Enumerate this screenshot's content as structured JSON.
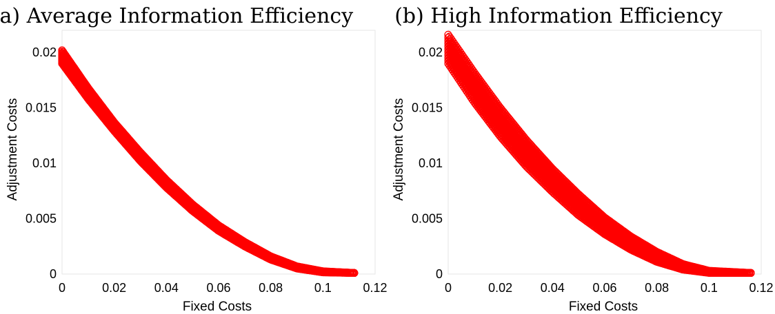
{
  "chart_data": [
    {
      "type": "scatter",
      "title": "(a) Average Information Efficiency",
      "xlabel": "Fixed Costs",
      "ylabel": "Adjustment Costs",
      "xlim": [
        0,
        0.12
      ],
      "ylim": [
        0,
        0.022
      ],
      "xticks": [
        "0",
        "0.02",
        "0.04",
        "0.06",
        "0.08",
        "0.1",
        "0.12"
      ],
      "yticks": [
        "0",
        "0.005",
        "0.01",
        "0.015",
        "0.02"
      ],
      "grid": false,
      "marker_color": "#ff0000",
      "marker": "open-circle",
      "series": [
        {
          "upper": [
            [
              0,
              0.0202
            ],
            [
              0.01,
              0.0168
            ],
            [
              0.02,
              0.0137
            ],
            [
              0.03,
              0.011
            ],
            [
              0.04,
              0.0085
            ],
            [
              0.05,
              0.0063
            ],
            [
              0.06,
              0.0044
            ],
            [
              0.07,
              0.0029
            ],
            [
              0.08,
              0.0016
            ],
            [
              0.09,
              0.0007
            ],
            [
              0.1,
              0.00025
            ],
            [
              0.112,
              0.0001
            ]
          ],
          "lower": [
            [
              0,
              0.019
            ],
            [
              0.01,
              0.0158
            ],
            [
              0.02,
              0.0129
            ],
            [
              0.03,
              0.0102
            ],
            [
              0.04,
              0.0078
            ],
            [
              0.05,
              0.0057
            ],
            [
              0.06,
              0.0039
            ],
            [
              0.07,
              0.0025
            ],
            [
              0.08,
              0.0013
            ],
            [
              0.09,
              0.0005
            ],
            [
              0.1,
              0.00015
            ],
            [
              0.112,
              0.0001
            ]
          ]
        }
      ]
    },
    {
      "type": "scatter",
      "title": "(b) High Information Efficiency",
      "xlabel": "Fixed Costs",
      "ylabel": "Adjustment Costs",
      "xlim": [
        0,
        0.12
      ],
      "ylim": [
        0,
        0.022
      ],
      "xticks": [
        "0",
        "0.02",
        "0.04",
        "0.06",
        "0.08",
        "0.1",
        "0.12"
      ],
      "yticks": [
        "0",
        "0.005",
        "0.01",
        "0.015",
        "0.02"
      ],
      "grid": false,
      "marker_color": "#ff0000",
      "marker": "open-circle",
      "series": [
        {
          "upper": [
            [
              0,
              0.0216
            ],
            [
              0.01,
              0.0182
            ],
            [
              0.02,
              0.015
            ],
            [
              0.03,
              0.0121
            ],
            [
              0.04,
              0.0095
            ],
            [
              0.05,
              0.0072
            ],
            [
              0.06,
              0.0051
            ],
            [
              0.07,
              0.0034
            ],
            [
              0.08,
              0.002
            ],
            [
              0.09,
              0.0009
            ],
            [
              0.1,
              0.0003
            ],
            [
              0.116,
              0.0001
            ]
          ],
          "lower": [
            [
              0,
              0.019
            ],
            [
              0.01,
              0.0155
            ],
            [
              0.02,
              0.0124
            ],
            [
              0.03,
              0.0097
            ],
            [
              0.04,
              0.0074
            ],
            [
              0.05,
              0.0053
            ],
            [
              0.06,
              0.0036
            ],
            [
              0.07,
              0.0022
            ],
            [
              0.08,
              0.0011
            ],
            [
              0.09,
              0.0004
            ],
            [
              0.1,
              0.0001
            ],
            [
              0.116,
              0.0001
            ]
          ]
        }
      ]
    }
  ]
}
